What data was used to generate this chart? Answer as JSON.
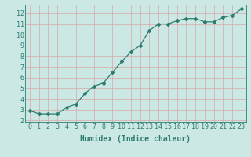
{
  "x": [
    0,
    1,
    2,
    3,
    4,
    5,
    6,
    7,
    8,
    9,
    10,
    11,
    12,
    13,
    14,
    15,
    16,
    17,
    18,
    19,
    20,
    21,
    22,
    23
  ],
  "y": [
    2.9,
    2.6,
    2.6,
    2.6,
    3.2,
    3.5,
    4.5,
    5.2,
    5.5,
    6.5,
    7.5,
    8.4,
    9.0,
    10.4,
    11.0,
    11.0,
    11.3,
    11.5,
    11.5,
    11.2,
    11.2,
    11.6,
    11.8,
    12.4
  ],
  "xlabel": "Humidex (Indice chaleur)",
  "line_color": "#2d7d6f",
  "marker": "D",
  "marker_size": 2.0,
  "bg_color": "#cce8e4",
  "grid_color_major": "#d8a8a8",
  "xlim": [
    -0.5,
    23.5
  ],
  "ylim": [
    1.8,
    12.8
  ],
  "yticks": [
    2,
    3,
    4,
    5,
    6,
    7,
    8,
    9,
    10,
    11,
    12
  ],
  "xticks": [
    0,
    1,
    2,
    3,
    4,
    5,
    6,
    7,
    8,
    9,
    10,
    11,
    12,
    13,
    14,
    15,
    16,
    17,
    18,
    19,
    20,
    21,
    22,
    23
  ],
  "xlabel_fontsize": 7,
  "tick_fontsize": 6,
  "lw": 0.9
}
